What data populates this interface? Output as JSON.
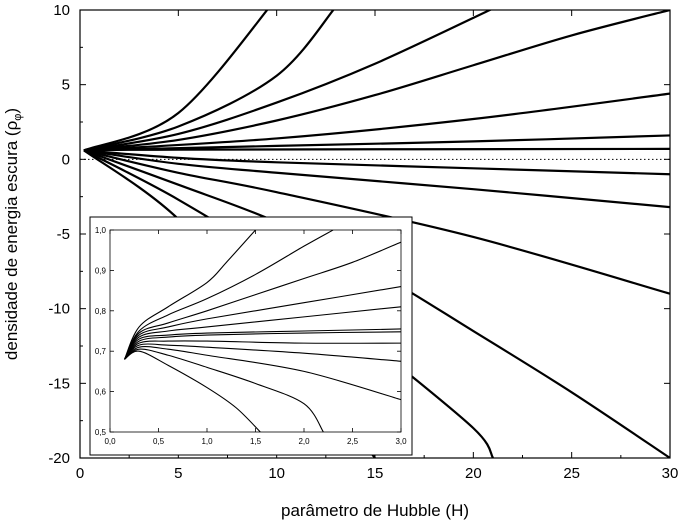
{
  "chart_data": [
    {
      "type": "line",
      "xlabel": "parâmetro de Hubble (H)",
      "ylabel": "densidade de energia escura (ρ_φ)",
      "ylabel_main": "densidade de energia escura (ρ",
      "ylabel_sub": "φ",
      "ylabel_close": ")",
      "xlim": [
        0,
        30
      ],
      "ylim": [
        -20,
        10
      ],
      "xticks": [
        0,
        5,
        10,
        15,
        20,
        25,
        30
      ],
      "yticks": [
        -20,
        -15,
        -10,
        -5,
        0,
        5,
        10
      ],
      "reference_line": {
        "y": 0,
        "style": "dotted"
      },
      "grid": false,
      "start_point": [
        0.2,
        0.6
      ],
      "series": [
        {
          "values": [
            [
              0.2,
              0.6
            ],
            [
              5,
              3.1
            ],
            [
              10,
              10.8
            ]
          ]
        },
        {
          "values": [
            [
              0.2,
              0.6
            ],
            [
              5,
              2.2
            ],
            [
              10,
              5.6
            ],
            [
              13,
              10.2
            ]
          ]
        },
        {
          "values": [
            [
              0.2,
              0.6
            ],
            [
              5,
              1.7
            ],
            [
              10,
              3.8
            ],
            [
              15,
              6.4
            ],
            [
              21,
              10.1
            ]
          ]
        },
        {
          "values": [
            [
              0.2,
              0.6
            ],
            [
              5,
              1.3
            ],
            [
              10,
              2.6
            ],
            [
              15,
              4.3
            ],
            [
              20,
              6.3
            ],
            [
              25,
              8.3
            ],
            [
              30,
              10
            ]
          ]
        },
        {
          "values": [
            [
              0.2,
              0.6
            ],
            [
              10,
              1.4
            ],
            [
              20,
              2.7
            ],
            [
              30,
              4.4
            ]
          ]
        },
        {
          "values": [
            [
              0.2,
              0.6
            ],
            [
              10,
              0.9
            ],
            [
              20,
              1.2
            ],
            [
              30,
              1.6
            ]
          ]
        },
        {
          "values": [
            [
              0.2,
              0.6
            ],
            [
              5,
              0.65
            ],
            [
              30,
              0.7
            ]
          ]
        },
        {
          "values": [
            [
              0.2,
              0.6
            ],
            [
              5,
              0.1
            ],
            [
              10,
              -0.2
            ],
            [
              20,
              -0.6
            ],
            [
              30,
              -1
            ]
          ]
        },
        {
          "values": [
            [
              0.2,
              0.6
            ],
            [
              5,
              -0.3
            ],
            [
              10,
              -0.9
            ],
            [
              20,
              -2
            ],
            [
              30,
              -3.2
            ]
          ]
        },
        {
          "values": [
            [
              0.2,
              0.6
            ],
            [
              5,
              -0.9
            ],
            [
              10,
              -2.2
            ],
            [
              20,
              -5.2
            ],
            [
              30,
              -9
            ]
          ]
        },
        {
          "values": [
            [
              0.2,
              0.6
            ],
            [
              5,
              -1.7
            ],
            [
              10,
              -4.2
            ],
            [
              15,
              -7.5
            ],
            [
              20,
              -11.5
            ],
            [
              25,
              -15.6
            ],
            [
              30,
              -20
            ]
          ]
        },
        {
          "values": [
            [
              0.2,
              0.6
            ],
            [
              5,
              -2.7
            ],
            [
              10,
              -6.9
            ],
            [
              15,
              -12.5
            ],
            [
              20,
              -18
            ],
            [
              21,
              -20
            ]
          ]
        },
        {
          "values": [
            [
              0.2,
              0.6
            ],
            [
              5,
              -4
            ],
            [
              10,
              -11.7
            ],
            [
              15,
              -20
            ]
          ]
        }
      ]
    },
    {
      "type": "line",
      "inset": true,
      "xlim": [
        0,
        3
      ],
      "ylim": [
        0.5,
        1.0
      ],
      "xtick_labels": [
        "0,0",
        "0,5",
        "1,0",
        "1,5",
        "2,0",
        "2,5",
        "3,0"
      ],
      "xtick_values": [
        0,
        0.5,
        1,
        1.5,
        2,
        2.5,
        3
      ],
      "ytick_labels": [
        "0,5",
        "0,6",
        "0,7",
        "0,8",
        "0,9",
        "1,0"
      ],
      "ytick_values": [
        0.5,
        0.6,
        0.7,
        0.8,
        0.9,
        1.0
      ],
      "series": [
        {
          "values": [
            [
              0.15,
              0.68
            ],
            [
              0.3,
              0.76
            ],
            [
              0.6,
              0.81
            ],
            [
              1.0,
              0.87
            ],
            [
              1.2,
              0.92
            ],
            [
              1.5,
              1.0
            ]
          ]
        },
        {
          "values": [
            [
              0.15,
              0.68
            ],
            [
              0.3,
              0.75
            ],
            [
              0.6,
              0.79
            ],
            [
              1.0,
              0.83
            ],
            [
              1.5,
              0.89
            ],
            [
              2.0,
              0.96
            ],
            [
              2.3,
              1.0
            ]
          ]
        },
        {
          "values": [
            [
              0.15,
              0.68
            ],
            [
              0.3,
              0.745
            ],
            [
              0.6,
              0.77
            ],
            [
              1.0,
              0.8
            ],
            [
              1.5,
              0.84
            ],
            [
              2.0,
              0.88
            ],
            [
              2.5,
              0.92
            ],
            [
              3.0,
              0.97
            ]
          ]
        },
        {
          "values": [
            [
              0.15,
              0.68
            ],
            [
              0.3,
              0.74
            ],
            [
              0.6,
              0.76
            ],
            [
              1.0,
              0.78
            ],
            [
              2.0,
              0.82
            ],
            [
              3.0,
              0.86
            ]
          ]
        },
        {
          "values": [
            [
              0.15,
              0.68
            ],
            [
              0.3,
              0.735
            ],
            [
              0.6,
              0.75
            ],
            [
              1.0,
              0.76
            ],
            [
              2.0,
              0.785
            ],
            [
              3.0,
              0.81
            ]
          ]
        },
        {
          "values": [
            [
              0.15,
              0.68
            ],
            [
              0.3,
              0.73
            ],
            [
              0.6,
              0.74
            ],
            [
              1.0,
              0.745
            ],
            [
              2.0,
              0.75
            ],
            [
              3.0,
              0.755
            ]
          ]
        },
        {
          "values": [
            [
              0.15,
              0.68
            ],
            [
              0.3,
              0.725
            ],
            [
              0.6,
              0.735
            ],
            [
              1.0,
              0.74
            ],
            [
              2.0,
              0.745
            ],
            [
              3.0,
              0.748
            ]
          ]
        },
        {
          "values": [
            [
              0.15,
              0.68
            ],
            [
              0.3,
              0.72
            ],
            [
              0.6,
              0.725
            ],
            [
              1.0,
              0.725
            ],
            [
              2.0,
              0.72
            ],
            [
              3.0,
              0.72
            ]
          ]
        },
        {
          "values": [
            [
              0.15,
              0.68
            ],
            [
              0.3,
              0.715
            ],
            [
              0.6,
              0.715
            ],
            [
              1.0,
              0.71
            ],
            [
              2.0,
              0.695
            ],
            [
              3.0,
              0.675
            ]
          ]
        },
        {
          "values": [
            [
              0.15,
              0.68
            ],
            [
              0.3,
              0.71
            ],
            [
              0.6,
              0.705
            ],
            [
              1.0,
              0.69
            ],
            [
              2.0,
              0.65
            ],
            [
              3.0,
              0.58
            ]
          ]
        },
        {
          "values": [
            [
              0.15,
              0.68
            ],
            [
              0.3,
              0.705
            ],
            [
              0.6,
              0.69
            ],
            [
              1.0,
              0.66
            ],
            [
              1.5,
              0.62
            ],
            [
              2.0,
              0.57
            ],
            [
              2.2,
              0.5
            ]
          ]
        },
        {
          "values": [
            [
              0.15,
              0.68
            ],
            [
              0.3,
              0.7
            ],
            [
              0.6,
              0.665
            ],
            [
              1.0,
              0.61
            ],
            [
              1.3,
              0.56
            ],
            [
              1.55,
              0.5
            ]
          ]
        }
      ]
    }
  ]
}
